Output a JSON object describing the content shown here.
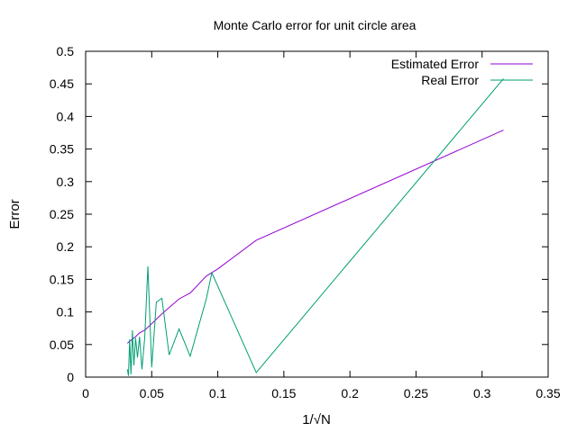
{
  "chart_data": {
    "type": "line",
    "title": "Monte Carlo error for unit circle area",
    "xlabel": "1/√N",
    "ylabel": "Error",
    "xlim": [
      0,
      0.35
    ],
    "ylim": [
      0,
      0.5
    ],
    "xticks": [
      0,
      0.05,
      0.1,
      0.15,
      0.2,
      0.25,
      0.3,
      0.35
    ],
    "xtick_labels": [
      "0",
      "0.05",
      "0.1",
      "0.15",
      "0.2",
      "0.25",
      "0.3",
      "0.35"
    ],
    "yticks": [
      0,
      0.05,
      0.1,
      0.15,
      0.2,
      0.25,
      0.3,
      0.35,
      0.4,
      0.45,
      0.5
    ],
    "ytick_labels": [
      "0",
      "0.05",
      "0.1",
      "0.15",
      "0.2",
      "0.25",
      "0.3",
      "0.35",
      "0.4",
      "0.45",
      "0.5"
    ],
    "grid": false,
    "legend_position": "top-right",
    "series": [
      {
        "name": "Estimated Error",
        "color": "#9400d3",
        "x": [
          0.0316,
          0.0333,
          0.0354,
          0.0378,
          0.0408,
          0.0447,
          0.05,
          0.0577,
          0.0707,
          0.0791,
          0.0913,
          0.1,
          0.1291,
          0.3162
        ],
        "y": [
          0.052,
          0.055,
          0.058,
          0.062,
          0.068,
          0.072,
          0.082,
          0.097,
          0.12,
          0.129,
          0.155,
          0.166,
          0.21,
          0.379
        ]
      },
      {
        "name": "Real Error",
        "color": "#009e73",
        "x": [
          0.0316,
          0.0324,
          0.0333,
          0.0343,
          0.0354,
          0.0365,
          0.0378,
          0.0392,
          0.0408,
          0.0426,
          0.0447,
          0.0471,
          0.05,
          0.0535,
          0.0577,
          0.0632,
          0.0707,
          0.0791,
          0.0913,
          0.0955,
          0.1291,
          0.3162
        ],
        "y": [
          0.012,
          0.002,
          0.058,
          0.004,
          0.072,
          0.018,
          0.06,
          0.03,
          0.062,
          0.012,
          0.06,
          0.17,
          0.015,
          0.115,
          0.121,
          0.034,
          0.074,
          0.032,
          0.12,
          0.16,
          0.007,
          0.458
        ]
      }
    ]
  }
}
